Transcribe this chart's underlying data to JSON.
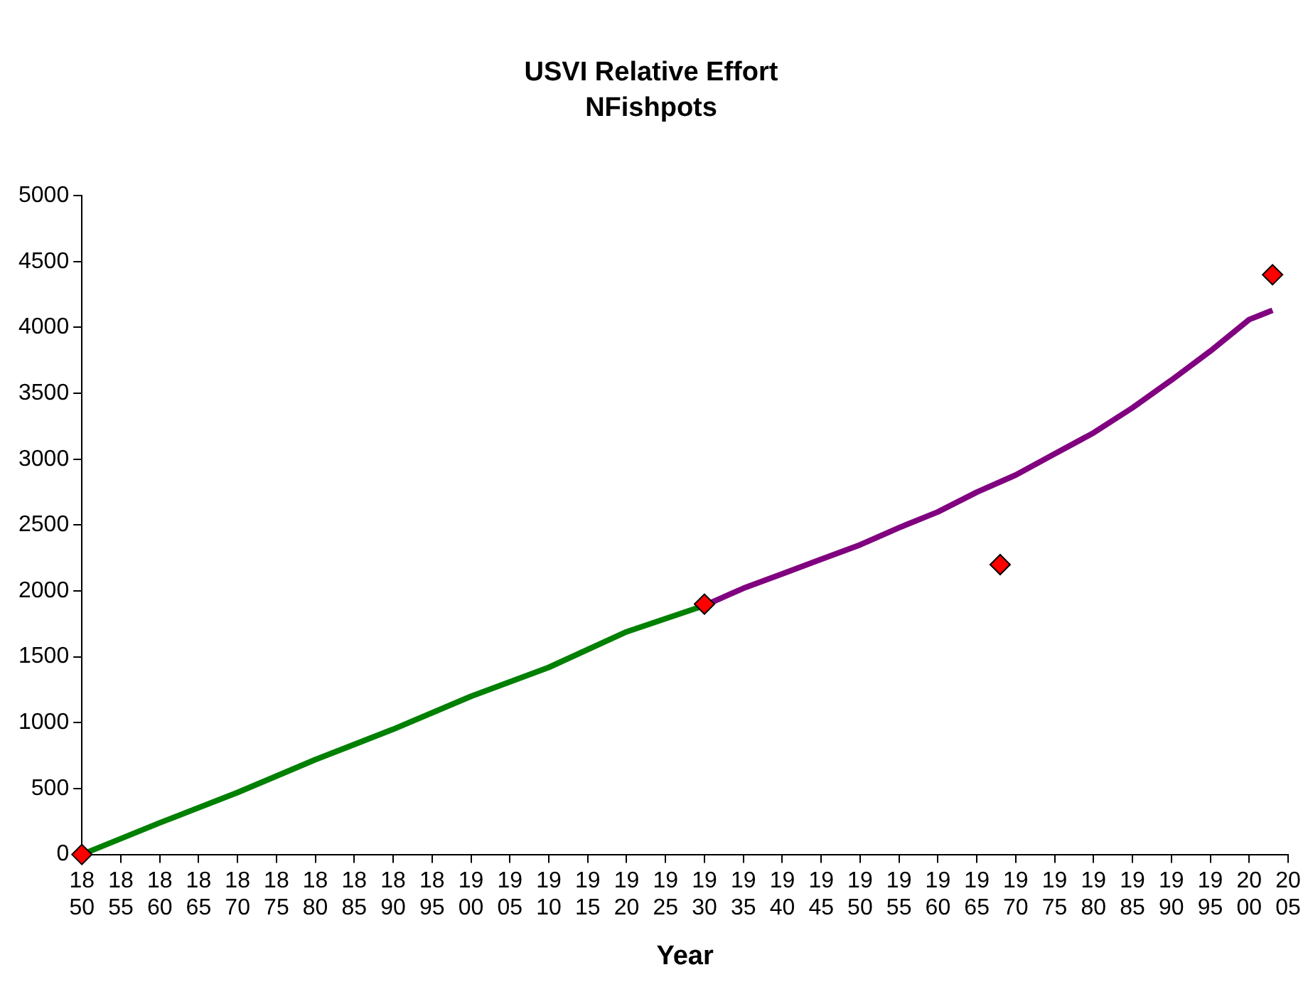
{
  "chart_data": {
    "type": "line",
    "title": "USVI Relative Effort",
    "subtitle": "NFishpots",
    "xlabel": "Year",
    "xlim": [
      1850,
      2005
    ],
    "xticks": [
      1850,
      1855,
      1860,
      1865,
      1870,
      1875,
      1880,
      1885,
      1890,
      1895,
      1900,
      1905,
      1910,
      1915,
      1920,
      1925,
      1930,
      1935,
      1940,
      1945,
      1950,
      1955,
      1960,
      1965,
      1970,
      1975,
      1980,
      1985,
      1990,
      1995,
      2000,
      2005
    ],
    "ylim": [
      0,
      5000
    ],
    "yticks": [
      0,
      500,
      1000,
      1500,
      2000,
      2500,
      3000,
      3500,
      4000,
      4500,
      5000
    ],
    "grid": false,
    "legend": false,
    "series": [
      {
        "type": "line",
        "color": "#008000",
        "marker": "none",
        "x": [
          1850,
          1860,
          1870,
          1880,
          1890,
          1900,
          1910,
          1920,
          1930
        ],
        "values": [
          0,
          240,
          470,
          720,
          950,
          1200,
          1420,
          1690,
          1890
        ]
      },
      {
        "type": "line",
        "color": "#800080",
        "marker": "none",
        "x": [
          1930,
          1935,
          1940,
          1945,
          1950,
          1955,
          1960,
          1965,
          1970,
          1975,
          1980,
          1985,
          1990,
          1995,
          2000,
          2003
        ],
        "values": [
          1890,
          2020,
          2130,
          2240,
          2350,
          2480,
          2600,
          2750,
          2880,
          3040,
          3200,
          3390,
          3600,
          3820,
          4060,
          4130
        ]
      },
      {
        "type": "scatter",
        "color": "#ff0000",
        "marker": "diamond",
        "x": [
          1850,
          1930,
          1968,
          2003
        ],
        "values": [
          0,
          1900,
          2200,
          4400
        ]
      }
    ]
  }
}
